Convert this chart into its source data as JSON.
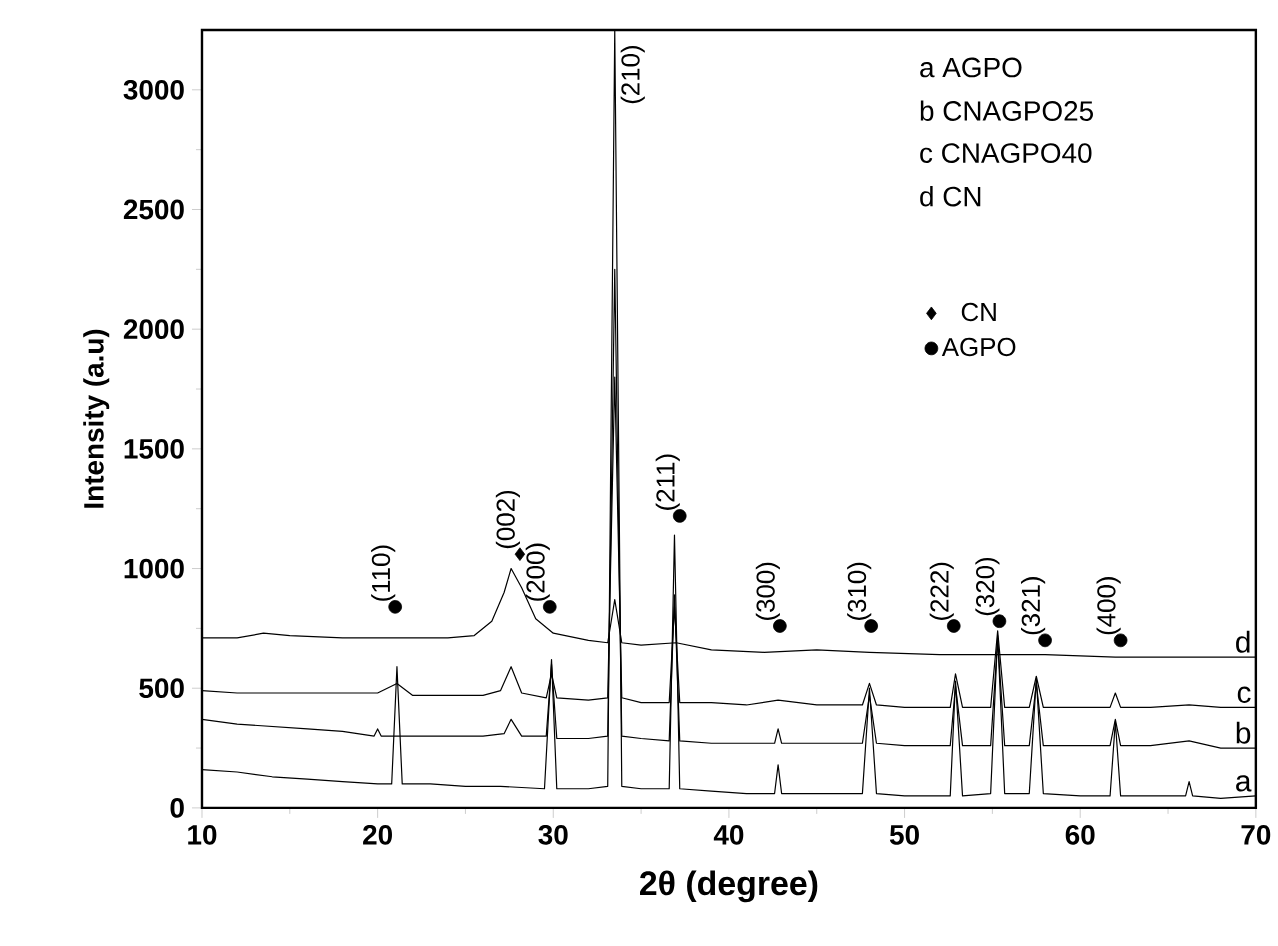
{
  "chart_data": {
    "type": "line",
    "xlabel": "2θ (degree)",
    "ylabel": "Intensity (a.u)",
    "xlim": [
      10,
      70
    ],
    "xticks": [
      10,
      20,
      30,
      40,
      50,
      60,
      70
    ],
    "ylim": [
      0,
      3250
    ],
    "yticks": [
      0,
      500,
      1000,
      1500,
      2000,
      2500,
      3000
    ],
    "grid": false,
    "legend": "right",
    "marker": "none",
    "line_style": "solid",
    "series": [
      {
        "name": "a",
        "color": "#000000",
        "x": [
          10,
          12,
          14,
          16,
          18,
          20,
          20.8,
          21.1,
          21.4,
          23,
          25,
          27,
          29.5,
          29.9,
          30.2,
          32,
          33.1,
          33.5,
          33.9,
          35,
          36.6,
          36.9,
          37.2,
          39,
          41,
          42.6,
          42.8,
          43,
          45,
          47.6,
          48.0,
          48.4,
          50,
          52.6,
          52.9,
          53.3,
          54.9,
          55.3,
          55.7,
          57.1,
          57.5,
          57.9,
          60,
          61.7,
          62.0,
          62.3,
          64,
          66,
          66.2,
          66.4,
          68,
          70
        ],
        "values": [
          160,
          150,
          130,
          120,
          110,
          100,
          100,
          590,
          100,
          100,
          90,
          90,
          80,
          620,
          80,
          80,
          90,
          3250,
          90,
          80,
          80,
          1140,
          80,
          70,
          60,
          60,
          180,
          60,
          60,
          60,
          500,
          60,
          50,
          50,
          530,
          50,
          60,
          720,
          60,
          60,
          540,
          60,
          50,
          50,
          360,
          50,
          50,
          50,
          110,
          50,
          40,
          50
        ]
      },
      {
        "name": "b",
        "color": "#000000",
        "x": [
          10,
          12,
          14,
          16,
          18,
          19.8,
          20,
          20.2,
          22,
          24,
          26,
          27.2,
          27.6,
          28.2,
          29.6,
          29.9,
          30.2,
          32,
          33.1,
          33.5,
          33.9,
          35,
          36.6,
          36.9,
          37.2,
          39,
          41,
          42.6,
          42.8,
          43,
          45,
          47.6,
          48,
          48.4,
          50,
          52.6,
          52.9,
          53.3,
          54.9,
          55.3,
          55.7,
          57.1,
          57.5,
          57.9,
          60,
          61.7,
          62.0,
          62.3,
          64,
          66.2,
          68,
          70
        ],
        "values": [
          370,
          350,
          340,
          330,
          320,
          300,
          330,
          300,
          300,
          300,
          300,
          310,
          370,
          300,
          300,
          600,
          290,
          290,
          300,
          2250,
          300,
          290,
          280,
          890,
          280,
          270,
          270,
          270,
          330,
          270,
          270,
          270,
          470,
          270,
          260,
          260,
          510,
          260,
          260,
          700,
          260,
          260,
          520,
          260,
          260,
          260,
          370,
          260,
          260,
          280,
          250,
          250
        ]
      },
      {
        "name": "c",
        "color": "#000000",
        "x": [
          10,
          12,
          14,
          16,
          18,
          20,
          21.1,
          22,
          24,
          26,
          27,
          27.6,
          28.2,
          29.6,
          29.9,
          30.2,
          32,
          33.1,
          33.5,
          33.9,
          35,
          36.6,
          36.9,
          37.2,
          39,
          41,
          42.8,
          45,
          47.6,
          48,
          48.4,
          50,
          52.6,
          52.9,
          53.3,
          54.9,
          55.3,
          55.7,
          57.1,
          57.5,
          57.9,
          60,
          61.7,
          62,
          62.3,
          64,
          66.2,
          68,
          70
        ],
        "values": [
          490,
          480,
          480,
          480,
          480,
          480,
          520,
          470,
          470,
          470,
          490,
          590,
          480,
          460,
          560,
          460,
          450,
          460,
          1800,
          460,
          440,
          440,
          840,
          440,
          440,
          430,
          450,
          430,
          430,
          520,
          430,
          420,
          420,
          560,
          420,
          420,
          740,
          420,
          420,
          550,
          420,
          420,
          420,
          480,
          420,
          420,
          430,
          420,
          420
        ]
      },
      {
        "name": "d",
        "color": "#000000",
        "x": [
          10,
          12,
          13.5,
          15,
          18,
          20,
          22,
          24,
          25.5,
          26.5,
          27.2,
          27.6,
          28.2,
          29,
          30,
          32,
          33.1,
          33.5,
          33.9,
          35,
          37,
          39,
          42,
          45,
          48,
          52,
          55,
          58,
          62,
          66,
          70
        ],
        "values": [
          710,
          710,
          730,
          720,
          710,
          710,
          710,
          710,
          720,
          780,
          900,
          1000,
          920,
          790,
          730,
          700,
          690,
          870,
          690,
          680,
          690,
          660,
          650,
          660,
          650,
          640,
          640,
          640,
          630,
          630,
          630
        ]
      },
      {
        "name": "CN",
        "type": "scatter",
        "marker": "diamond",
        "color": "#000000",
        "x": [
          28.1
        ],
        "values": [
          1060
        ]
      },
      {
        "name": "AGPO",
        "type": "scatter",
        "marker": "circle",
        "color": "#000000",
        "x": [
          21,
          29.8,
          37.2,
          42.9,
          48.1,
          52.8,
          55.4,
          58.0,
          62.3
        ],
        "values": [
          840,
          840,
          1220,
          760,
          760,
          760,
          780,
          700,
          700
        ]
      }
    ],
    "annotations": [
      "a AGPO",
      "b CNAGPO25",
      "c CNAGPO40",
      "d CN",
      {
        "text": "(110)",
        "x": 21,
        "y": 840
      },
      {
        "text": "(002)",
        "x": 28.1,
        "y": 1060
      },
      {
        "text": "(200)",
        "x": 29.8,
        "y": 840
      },
      {
        "text": "(210)",
        "x": 33.5,
        "y": 3250
      },
      {
        "text": "(211)",
        "x": 37.2,
        "y": 1220
      },
      {
        "text": "(300)",
        "x": 42.9,
        "y": 760
      },
      {
        "text": "(310)",
        "x": 48.1,
        "y": 760
      },
      {
        "text": "(222)",
        "x": 52.8,
        "y": 760
      },
      {
        "text": "(320)",
        "x": 55.4,
        "y": 780
      },
      {
        "text": "(321)",
        "x": 58.0,
        "y": 700
      },
      {
        "text": "(400)",
        "x": 62.3,
        "y": 700
      }
    ]
  }
}
